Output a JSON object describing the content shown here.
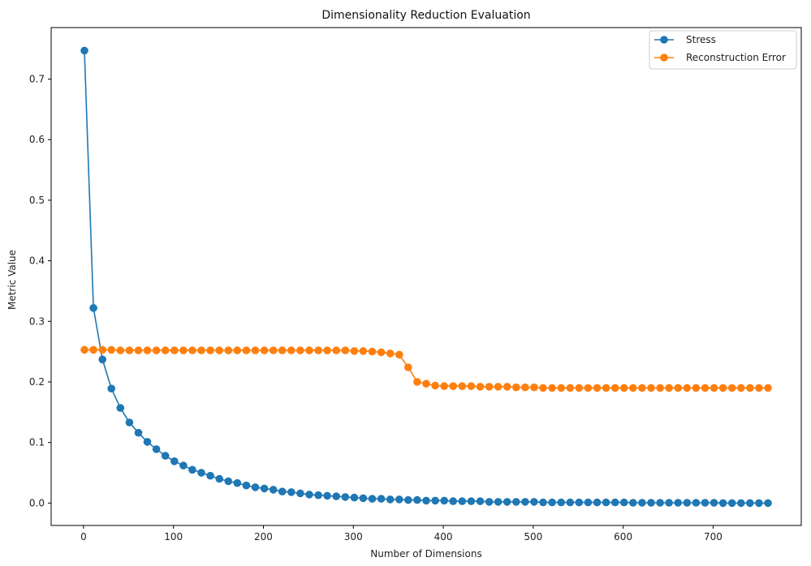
{
  "chart_data": {
    "type": "line",
    "title": "Dimensionality Reduction Evaluation",
    "xlabel": "Number of Dimensions",
    "ylabel": "Metric Value",
    "xlim": [
      -36,
      798
    ],
    "ylim": [
      -0.037,
      0.785
    ],
    "x_ticks": [
      0,
      100,
      200,
      300,
      400,
      500,
      600,
      700
    ],
    "y_ticks": [
      0.0,
      0.1,
      0.2,
      0.3,
      0.4,
      0.5,
      0.6,
      0.7
    ],
    "grid": false,
    "legend_position": "top-right",
    "x": [
      1,
      11,
      21,
      31,
      41,
      51,
      61,
      71,
      81,
      91,
      101,
      111,
      121,
      131,
      141,
      151,
      161,
      171,
      181,
      191,
      201,
      211,
      221,
      231,
      241,
      251,
      261,
      271,
      281,
      291,
      301,
      311,
      321,
      331,
      341,
      351,
      361,
      371,
      381,
      391,
      401,
      411,
      421,
      431,
      441,
      451,
      461,
      471,
      481,
      491,
      501,
      511,
      521,
      531,
      541,
      551,
      561,
      571,
      581,
      591,
      601,
      611,
      621,
      631,
      641,
      651,
      661,
      671,
      681,
      691,
      701,
      711,
      721,
      731,
      741,
      751,
      761
    ],
    "series": [
      {
        "name": "Stress",
        "color": "#1f77b4",
        "values": [
          0.747,
          0.322,
          0.237,
          0.189,
          0.157,
          0.133,
          0.116,
          0.101,
          0.089,
          0.078,
          0.069,
          0.062,
          0.055,
          0.05,
          0.045,
          0.04,
          0.036,
          0.033,
          0.029,
          0.026,
          0.024,
          0.022,
          0.019,
          0.018,
          0.016,
          0.014,
          0.013,
          0.012,
          0.011,
          0.01,
          0.009,
          0.008,
          0.007,
          0.007,
          0.006,
          0.006,
          0.005,
          0.005,
          0.004,
          0.004,
          0.004,
          0.003,
          0.003,
          0.003,
          0.003,
          0.002,
          0.002,
          0.002,
          0.002,
          0.002,
          0.002,
          0.001,
          0.001,
          0.001,
          0.001,
          0.001,
          0.001,
          0.001,
          0.001,
          0.001,
          0.001,
          0.0005,
          0.0005,
          0.0005,
          0.0005,
          0.0005,
          0.0005,
          0.0005,
          0.0005,
          0.0005,
          0.0005,
          0.0,
          0.0,
          0.0,
          0.0,
          0.0,
          0.0
        ]
      },
      {
        "name": "Reconstruction Error",
        "color": "#ff7f0e",
        "values": [
          0.253,
          0.253,
          0.253,
          0.253,
          0.252,
          0.252,
          0.252,
          0.252,
          0.252,
          0.252,
          0.252,
          0.252,
          0.252,
          0.252,
          0.252,
          0.252,
          0.252,
          0.252,
          0.252,
          0.252,
          0.252,
          0.252,
          0.252,
          0.252,
          0.252,
          0.252,
          0.252,
          0.252,
          0.252,
          0.252,
          0.251,
          0.251,
          0.25,
          0.249,
          0.247,
          0.245,
          0.224,
          0.2,
          0.197,
          0.194,
          0.193,
          0.193,
          0.193,
          0.193,
          0.192,
          0.192,
          0.192,
          0.192,
          0.191,
          0.191,
          0.191,
          0.19,
          0.19,
          0.19,
          0.19,
          0.19,
          0.19,
          0.19,
          0.19,
          0.19,
          0.19,
          0.19,
          0.19,
          0.19,
          0.19,
          0.19,
          0.19,
          0.19,
          0.19,
          0.19,
          0.19,
          0.19,
          0.19,
          0.19,
          0.19,
          0.19,
          0.19
        ]
      }
    ]
  }
}
